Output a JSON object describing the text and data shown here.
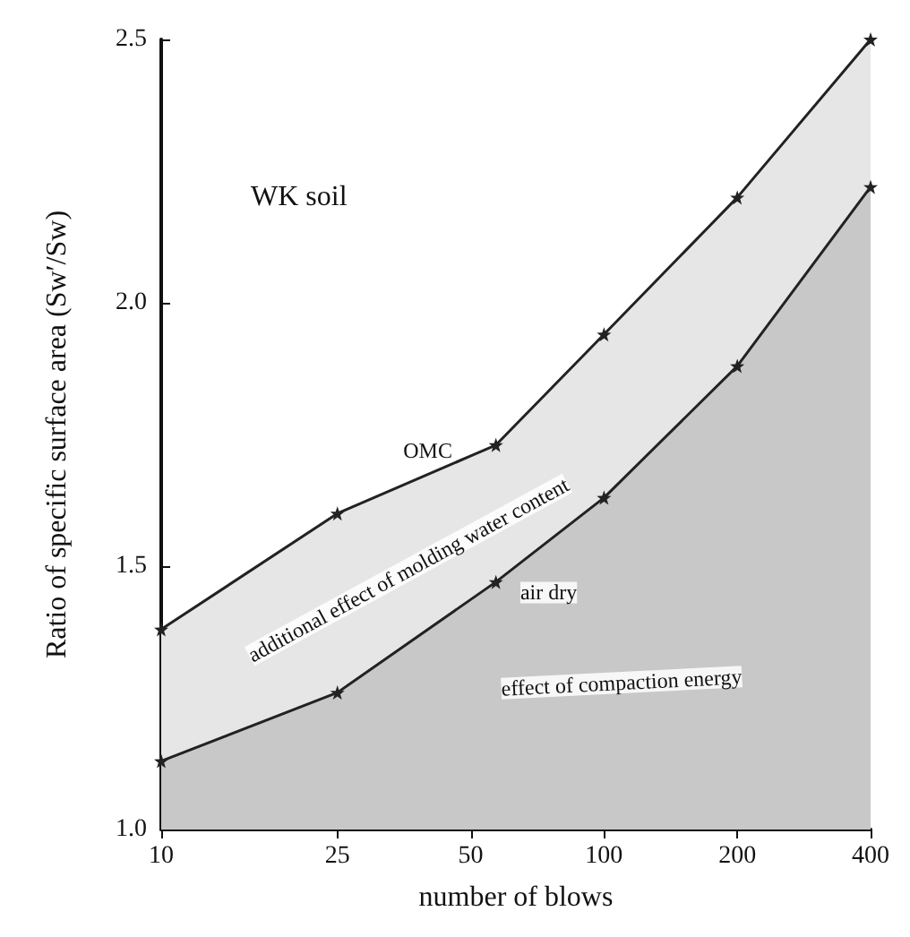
{
  "chart_data": {
    "type": "area",
    "xlabel": "number of blows",
    "ylabel": "Ratio of specific surface area (Sw′/Sw)",
    "series": [
      {
        "color": "#222222",
        "x": [
          10,
          25,
          57,
          100,
          200,
          400
        ],
        "values": [
          1.38,
          1.6,
          1.73,
          1.94,
          2.2,
          2.5
        ]
      },
      {
        "color": "#222222",
        "x": [
          10,
          25,
          57,
          100,
          200,
          400
        ],
        "values": [
          1.13,
          1.26,
          1.47,
          1.63,
          1.88,
          2.22
        ]
      }
    ],
    "log": "x",
    "xlim": [
      10,
      400
    ],
    "xticks": [
      10,
      25,
      50,
      100,
      200,
      400
    ],
    "ylim": [
      1.0,
      2.5
    ],
    "yticks": [
      {
        "value": 1.0,
        "label": "1.0"
      },
      {
        "value": 1.5,
        "label": "1.5"
      },
      {
        "value": 2.0,
        "label": "2.0"
      },
      {
        "value": 2.5,
        "label": "2.5"
      }
    ],
    "grid": false,
    "marker": "star",
    "line_style": "solid",
    "annotations": [
      "WK soil",
      {
        "text": "OMC",
        "x": 40,
        "y": 1.72
      },
      {
        "text": "air dry",
        "x": 75,
        "y": 1.45
      },
      "additional effect of molding water content",
      "effect of compaction energy"
    ]
  }
}
